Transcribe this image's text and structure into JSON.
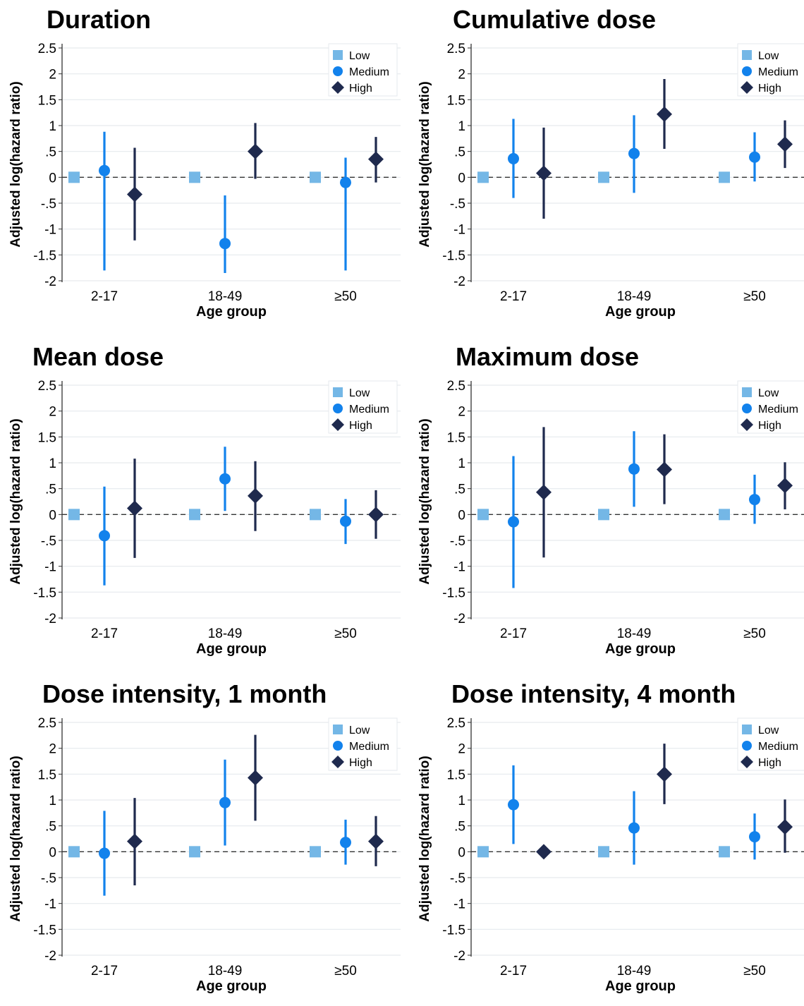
{
  "legend": {
    "low": "Low",
    "medium": "Medium",
    "high": "High"
  },
  "colors": {
    "low": "#74b7e6",
    "medium": "#1282ec",
    "high": "#1f2a4e",
    "grid": "#e6e9ee",
    "axis": "#333333",
    "reference_line": "#333333"
  },
  "markers": {
    "low": "square",
    "medium": "circle",
    "high": "diamond"
  },
  "chart_data": [
    {
      "type": "scatter",
      "title": "Duration",
      "xlabel": "Age group",
      "ylabel": "Adjusted log(hazard ratio)",
      "categories": [
        "2-17",
        "18-49",
        "≥50"
      ],
      "ylim": [
        -2,
        2.5
      ],
      "yticks": [
        2.5,
        2,
        1.5,
        1,
        0.5,
        0,
        -0.5,
        -1,
        -1.5,
        -2
      ],
      "ytick_labels": [
        "2.5",
        "2",
        "1.5",
        "1",
        ".5",
        "0",
        "-.5",
        "-1",
        "-1.5",
        "-2"
      ],
      "grid": true,
      "legend_position": "top-right",
      "reference_line": 0,
      "series": [
        {
          "name": "Low",
          "values": [
            0,
            0,
            0
          ],
          "lower": [
            null,
            null,
            null
          ],
          "upper": [
            null,
            null,
            null
          ]
        },
        {
          "name": "Medium",
          "values": [
            0.13,
            -1.28,
            -0.1
          ],
          "lower": [
            -1.8,
            -1.85,
            -1.8
          ],
          "upper": [
            0.88,
            -0.35,
            0.38
          ]
        },
        {
          "name": "High",
          "values": [
            -0.33,
            0.5,
            0.35
          ],
          "lower": [
            -1.22,
            -0.03,
            -0.1
          ],
          "upper": [
            0.57,
            1.05,
            0.78
          ]
        }
      ]
    },
    {
      "type": "scatter",
      "title": "Cumulative dose",
      "xlabel": "Age group",
      "ylabel": "Adjusted log(hazard ratio)",
      "categories": [
        "2-17",
        "18-49",
        "≥50"
      ],
      "ylim": [
        -2,
        2.5
      ],
      "yticks": [
        2.5,
        2,
        1.5,
        1,
        0.5,
        0,
        -0.5,
        -1,
        -1.5,
        -2
      ],
      "ytick_labels": [
        "2.5",
        "2",
        "1.5",
        "1",
        ".5",
        "0",
        "-.5",
        "-1",
        "-1.5",
        "-2"
      ],
      "grid": true,
      "legend_position": "top-right",
      "reference_line": 0,
      "series": [
        {
          "name": "Low",
          "values": [
            0,
            0,
            0
          ],
          "lower": [
            null,
            null,
            null
          ],
          "upper": [
            null,
            null,
            null
          ]
        },
        {
          "name": "Medium",
          "values": [
            0.36,
            0.46,
            0.39
          ],
          "lower": [
            -0.4,
            -0.3,
            -0.08
          ],
          "upper": [
            1.13,
            1.2,
            0.87
          ]
        },
        {
          "name": "High",
          "values": [
            0.08,
            1.22,
            0.64
          ],
          "lower": [
            -0.8,
            0.55,
            0.18
          ],
          "upper": [
            0.96,
            1.9,
            1.1
          ]
        }
      ]
    },
    {
      "type": "scatter",
      "title": "Mean dose",
      "xlabel": "Age group",
      "ylabel": "Adjusted log(hazard ratio)",
      "categories": [
        "2-17",
        "18-49",
        "≥50"
      ],
      "ylim": [
        -2,
        2.5
      ],
      "yticks": [
        2.5,
        2,
        1.5,
        1,
        0.5,
        0,
        -0.5,
        -1,
        -1.5,
        -2
      ],
      "ytick_labels": [
        "2.5",
        "2",
        "1.5",
        "1",
        ".5",
        "0",
        "-.5",
        "-1",
        "-1.5",
        "-2"
      ],
      "grid": true,
      "legend_position": "top-right",
      "reference_line": 0,
      "series": [
        {
          "name": "Low",
          "values": [
            0,
            0,
            0
          ],
          "lower": [
            null,
            null,
            null
          ],
          "upper": [
            null,
            null,
            null
          ]
        },
        {
          "name": "Medium",
          "values": [
            -0.41,
            0.69,
            -0.13
          ],
          "lower": [
            -1.37,
            0.07,
            -0.57
          ],
          "upper": [
            0.54,
            1.31,
            0.3
          ]
        },
        {
          "name": "High",
          "values": [
            0.12,
            0.36,
            0.0
          ],
          "lower": [
            -0.84,
            -0.32,
            -0.47
          ],
          "upper": [
            1.08,
            1.03,
            0.47
          ]
        }
      ]
    },
    {
      "type": "scatter",
      "title": "Maximum dose",
      "xlabel": "Age group",
      "ylabel": "Adjusted log(hazard ratio)",
      "categories": [
        "2-17",
        "18-49",
        "≥50"
      ],
      "ylim": [
        -2,
        2.5
      ],
      "yticks": [
        2.5,
        2,
        1.5,
        1,
        0.5,
        0,
        -0.5,
        -1,
        -1.5,
        -2
      ],
      "ytick_labels": [
        "2.5",
        "2",
        "1.5",
        "1",
        ".5",
        "0",
        "-.5",
        "-1",
        "-1.5",
        "-2"
      ],
      "grid": true,
      "legend_position": "top-right",
      "reference_line": 0,
      "series": [
        {
          "name": "Low",
          "values": [
            0,
            0,
            0
          ],
          "lower": [
            null,
            null,
            null
          ],
          "upper": [
            null,
            null,
            null
          ]
        },
        {
          "name": "Medium",
          "values": [
            -0.14,
            0.88,
            0.29
          ],
          "lower": [
            -1.42,
            0.15,
            -0.18
          ],
          "upper": [
            1.13,
            1.61,
            0.77
          ]
        },
        {
          "name": "High",
          "values": [
            0.43,
            0.87,
            0.56
          ],
          "lower": [
            -0.83,
            0.2,
            0.1
          ],
          "upper": [
            1.69,
            1.55,
            1.01
          ]
        }
      ]
    },
    {
      "type": "scatter",
      "title": "Dose intensity, 1 month",
      "xlabel": "Age group",
      "ylabel": "Adjusted log(hazard ratio)",
      "categories": [
        "2-17",
        "18-49",
        "≥50"
      ],
      "ylim": [
        -2,
        2.5
      ],
      "yticks": [
        2.5,
        2,
        1.5,
        1,
        0.5,
        0,
        -0.5,
        -1,
        -1.5,
        -2
      ],
      "ytick_labels": [
        "2.5",
        "2",
        "1.5",
        "1",
        ".5",
        "0",
        "-.5",
        "-1",
        "-1.5",
        "-2"
      ],
      "grid": true,
      "legend_position": "top-right",
      "reference_line": 0,
      "series": [
        {
          "name": "Low",
          "values": [
            0,
            0,
            0
          ],
          "lower": [
            null,
            null,
            null
          ],
          "upper": [
            null,
            null,
            null
          ]
        },
        {
          "name": "Medium",
          "values": [
            -0.03,
            0.95,
            0.18
          ],
          "lower": [
            -0.85,
            0.12,
            -0.25
          ],
          "upper": [
            0.79,
            1.78,
            0.62
          ]
        },
        {
          "name": "High",
          "values": [
            0.2,
            1.43,
            0.2
          ],
          "lower": [
            -0.65,
            0.6,
            -0.28
          ],
          "upper": [
            1.04,
            2.26,
            0.69
          ]
        }
      ]
    },
    {
      "type": "scatter",
      "title": "Dose intensity, 4 month",
      "xlabel": "Age group",
      "ylabel": "Adjusted log(hazard ratio)",
      "categories": [
        "2-17",
        "18-49",
        "≥50"
      ],
      "ylim": [
        -2,
        2.5
      ],
      "yticks": [
        2.5,
        2,
        1.5,
        1,
        0.5,
        0,
        -0.5,
        -1,
        -1.5,
        -2
      ],
      "ytick_labels": [
        "2.5",
        "2",
        "1.5",
        "1",
        ".5",
        "0",
        "-.5",
        "-1",
        "-1.5",
        "-2"
      ],
      "grid": true,
      "legend_position": "top-right",
      "reference_line": 0,
      "series": [
        {
          "name": "Low",
          "values": [
            0,
            0,
            0
          ],
          "lower": [
            null,
            null,
            null
          ],
          "upper": [
            null,
            null,
            null
          ]
        },
        {
          "name": "Medium",
          "values": [
            0.91,
            0.46,
            0.29
          ],
          "lower": [
            0.15,
            -0.25,
            -0.15
          ],
          "upper": [
            1.67,
            1.17,
            0.74
          ]
        },
        {
          "name": "High",
          "values": [
            0.0,
            1.5,
            0.48
          ],
          "lower": [
            null,
            0.92,
            -0.02
          ],
          "upper": [
            null,
            2.09,
            1.01
          ]
        }
      ]
    }
  ]
}
